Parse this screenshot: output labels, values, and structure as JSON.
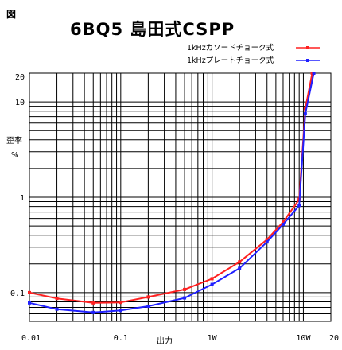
{
  "figure_label": "図",
  "title": "6BQ5 島田式CSPP",
  "chart_data": {
    "type": "line",
    "xscale": "log",
    "yscale": "log",
    "xlim": [
      0.01,
      20
    ],
    "ylim": [
      0.05,
      20
    ],
    "grid": true,
    "legend_position": "top-right",
    "xlabel": "出力",
    "ylabel_line1": "歪率",
    "ylabel_line2": "%",
    "x_tick_labels": [
      {
        "value": 0.01,
        "label": "0.01"
      },
      {
        "value": 0.1,
        "label": "0.1"
      },
      {
        "value": 1,
        "label": "1W"
      },
      {
        "value": 10,
        "label": "10W"
      },
      {
        "value": 20,
        "label": "20"
      }
    ],
    "y_tick_labels": [
      {
        "value": 20,
        "label": "20"
      },
      {
        "value": 10,
        "label": "10"
      },
      {
        "value": 1,
        "label": "1"
      },
      {
        "value": 0.1,
        "label": "0.1"
      }
    ],
    "series": [
      {
        "name": "1kHzカソードチョーク式",
        "color": "#ff2020",
        "x": [
          0.01,
          0.02,
          0.05,
          0.1,
          0.2,
          0.5,
          1,
          2,
          4,
          6,
          9,
          10.5,
          12.5
        ],
        "y": [
          0.1,
          0.087,
          0.078,
          0.079,
          0.09,
          0.108,
          0.14,
          0.21,
          0.36,
          0.55,
          0.95,
          8.5,
          20
        ]
      },
      {
        "name": "1kHzプレートチョーク式",
        "color": "#2020ff",
        "x": [
          0.01,
          0.02,
          0.05,
          0.1,
          0.2,
          0.5,
          1,
          2,
          4,
          6,
          9,
          10.5,
          13
        ],
        "y": [
          0.078,
          0.067,
          0.062,
          0.065,
          0.072,
          0.088,
          0.122,
          0.18,
          0.34,
          0.52,
          0.82,
          7.5,
          20
        ]
      }
    ]
  }
}
